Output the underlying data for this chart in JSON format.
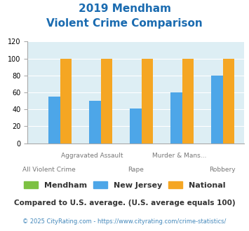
{
  "title_line1": "2019 Mendham",
  "title_line2": "Violent Crime Comparison",
  "categories": [
    "All Violent Crime",
    "Aggravated Assault",
    "Rape",
    "Murder & Mans...",
    "Robbery"
  ],
  "cat_labels_row1": [
    "",
    "Aggravated Assault",
    "",
    "Murder & Mans...",
    ""
  ],
  "cat_labels_row2": [
    "All Violent Crime",
    "",
    "Rape",
    "",
    "Robbery"
  ],
  "mendham_values": [
    0,
    0,
    0,
    0,
    0
  ],
  "nj_values": [
    55,
    50,
    41,
    60,
    80
  ],
  "national_values": [
    100,
    100,
    100,
    100,
    100
  ],
  "mendham_color": "#7dc142",
  "nj_color": "#4da6e8",
  "national_color": "#f5a623",
  "ylim": [
    0,
    120
  ],
  "yticks": [
    0,
    20,
    40,
    60,
    80,
    100,
    120
  ],
  "legend_labels": [
    "Mendham",
    "New Jersey",
    "National"
  ],
  "footnote1": "Compared to U.S. average. (U.S. average equals 100)",
  "footnote2": "© 2025 CityRating.com - https://www.cityrating.com/crime-statistics/",
  "bg_color": "#ddeef4",
  "title_color": "#1a6bb0",
  "footnote1_color": "#333333",
  "footnote2_color": "#4488bb",
  "bar_width": 0.28
}
